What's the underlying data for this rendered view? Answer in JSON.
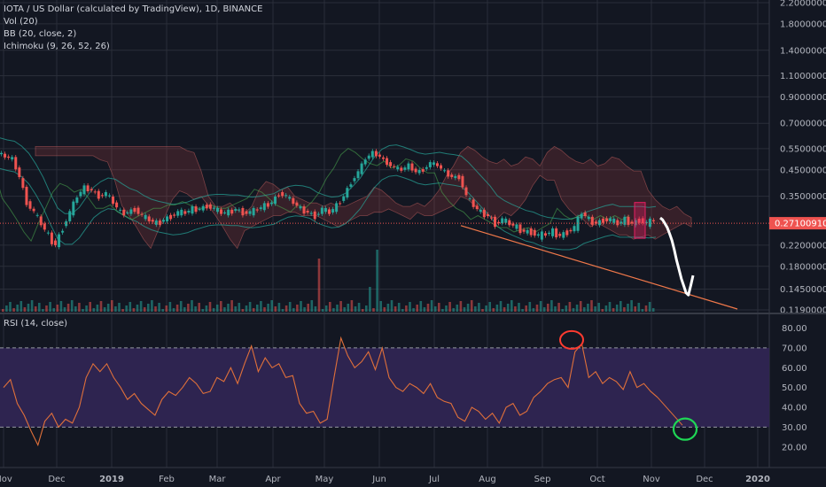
{
  "legend": {
    "title": "IOTA / US Dollar (calculated by TradingView), 1D, BINANCE",
    "vol": "Vol (20)",
    "bb": "BB (20, close, 2)",
    "ichimoku": "Ichimoku (9, 26, 52, 26)"
  },
  "rsi_title": "RSI (14, close)",
  "colors": {
    "background": "#131722",
    "grid": "#2a2e39",
    "candle_up": "#26a69a",
    "candle_down": "#ef5350",
    "rsi_line": "#e0703a",
    "rsi_band": "#2e2450",
    "price_line": "#ef5350",
    "trendline": "#f0784a",
    "annot_red": "#ff3b30",
    "annot_green": "#1fd655",
    "white_path": "#ffffff"
  },
  "chart_data": [
    {
      "type": "candlestick",
      "title": "IOTA / US Dollar (calculated by TradingView), 1D, BINANCE",
      "x_ticks": [
        "Nov",
        "Dec",
        "2019",
        "Feb",
        "Mar",
        "Apr",
        "May",
        "Jun",
        "Jul",
        "Aug",
        "Sep",
        "Oct",
        "Nov",
        "Dec",
        "2020"
      ],
      "y_scale": "log",
      "y_ticks": [
        "2.20000000",
        "1.80000000",
        "1.40000000",
        "1.10000000",
        "0.90000000",
        "0.70000000",
        "0.55000000",
        "0.45000000",
        "0.35000000",
        "0.22000000",
        "0.18000000",
        "0.14500000",
        "0.11900000"
      ],
      "y_tick_values": [
        2.2,
        1.8,
        1.4,
        1.1,
        0.9,
        0.7,
        0.55,
        0.45,
        0.35,
        0.22,
        0.18,
        0.145,
        0.119
      ],
      "last_price": "0.27100910",
      "last_price_value": 0.2710091,
      "price_path": [
        0.53,
        0.51,
        0.5,
        0.42,
        0.33,
        0.3,
        0.27,
        0.24,
        0.22,
        0.26,
        0.3,
        0.35,
        0.38,
        0.37,
        0.35,
        0.36,
        0.33,
        0.3,
        0.3,
        0.31,
        0.29,
        0.28,
        0.27,
        0.28,
        0.29,
        0.3,
        0.3,
        0.31,
        0.31,
        0.32,
        0.31,
        0.3,
        0.3,
        0.31,
        0.3,
        0.3,
        0.31,
        0.32,
        0.33,
        0.36,
        0.35,
        0.33,
        0.31,
        0.3,
        0.29,
        0.31,
        0.3,
        0.32,
        0.35,
        0.4,
        0.44,
        0.5,
        0.53,
        0.51,
        0.48,
        0.46,
        0.45,
        0.47,
        0.44,
        0.45,
        0.48,
        0.47,
        0.44,
        0.42,
        0.42,
        0.35,
        0.32,
        0.3,
        0.29,
        0.27,
        0.28,
        0.27,
        0.26,
        0.25,
        0.25,
        0.24,
        0.245,
        0.25,
        0.24,
        0.25,
        0.26,
        0.3,
        0.28,
        0.27,
        0.28,
        0.28,
        0.27,
        0.28,
        0.27,
        0.28,
        0.27,
        0.28
      ],
      "projection_path": [
        0.285,
        0.28,
        0.27,
        0.26,
        0.245,
        0.23,
        0.21,
        0.19,
        0.175,
        0.16,
        0.15,
        0.14,
        0.137,
        0.15,
        0.165
      ],
      "trendline_start": 0.265,
      "trendline_end": 0.12
    },
    {
      "type": "line",
      "title": "RSI (14, close)",
      "y_ticks": [
        "80.00",
        "70.00",
        "60.00",
        "50.00",
        "40.00",
        "30.00",
        "20.00"
      ],
      "y_tick_values": [
        80,
        70,
        60,
        50,
        40,
        30,
        20
      ],
      "ylim": [
        15,
        82
      ],
      "band": [
        30,
        70
      ],
      "rsi_values": [
        50,
        54,
        42,
        36,
        28,
        21,
        33,
        37,
        30,
        34,
        32,
        40,
        55,
        62,
        58,
        62,
        55,
        50,
        44,
        47,
        42,
        39,
        36,
        44,
        48,
        46,
        50,
        55,
        52,
        47,
        48,
        55,
        53,
        60,
        52,
        62,
        71,
        58,
        65,
        60,
        62,
        55,
        56,
        42,
        37,
        38,
        32,
        34,
        55,
        75,
        66,
        60,
        63,
        68,
        59,
        70,
        55,
        50,
        48,
        52,
        50,
        47,
        52,
        45,
        43,
        42,
        35,
        33,
        40,
        38,
        34,
        37,
        32,
        40,
        42,
        36,
        38,
        45,
        48,
        52,
        54,
        55,
        50,
        68,
        72,
        55,
        58,
        52,
        55,
        53,
        49,
        58,
        50,
        52,
        48,
        45
      ]
    }
  ]
}
